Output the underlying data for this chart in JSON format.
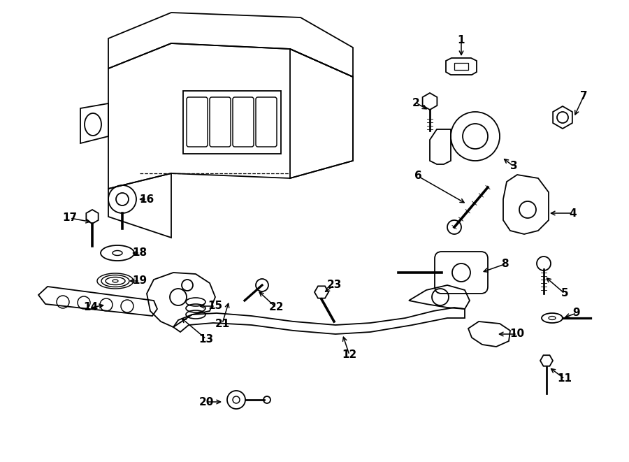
{
  "background_color": "#ffffff",
  "line_color": "#000000",
  "label_fontsize": 11,
  "fig_width": 9.0,
  "fig_height": 6.61,
  "dpi": 100
}
